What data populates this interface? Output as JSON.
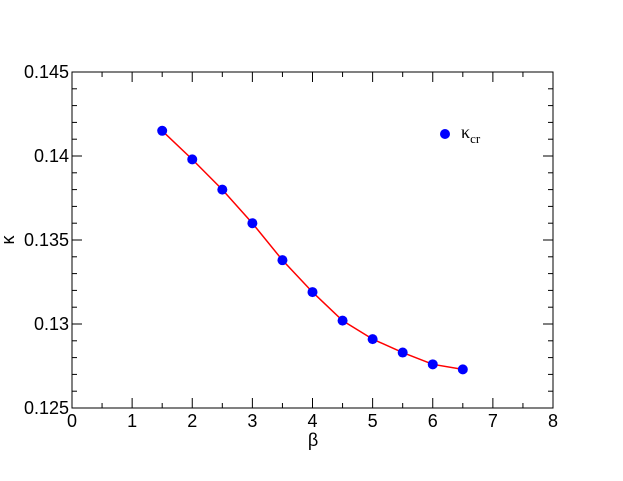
{
  "chart_data": {
    "type": "scatter",
    "x_label": "β",
    "y_label": "κ",
    "series": [
      {
        "name": "κ",
        "subscript": "cr",
        "color": "#0000ff",
        "line_color": "#ff0000",
        "x": [
          1.5,
          2,
          2.5,
          3,
          3.5,
          4,
          4.5,
          5,
          5.5,
          6,
          6.5
        ],
        "values": [
          0.1415,
          0.1398,
          0.138,
          0.136,
          0.1338,
          0.1319,
          0.1302,
          0.1291,
          0.1283,
          0.1276,
          0.1273
        ]
      }
    ],
    "xlim": [
      0,
      8
    ],
    "ylim": [
      0.125,
      0.145
    ],
    "xticks": [
      0,
      1,
      2,
      3,
      4,
      5,
      6,
      7,
      8
    ],
    "yticks": [
      0.125,
      0.13,
      0.135,
      0.14,
      0.145
    ],
    "xminor": [
      0.5,
      1.5,
      2.5,
      3.5,
      4.5,
      5.5,
      6.5,
      7.5
    ],
    "yminor": [
      0.126,
      0.127,
      0.128,
      0.129,
      0.131,
      0.132,
      0.133,
      0.134,
      0.136,
      0.137,
      0.138,
      0.139,
      0.141,
      0.142,
      0.143,
      0.144
    ],
    "legend": "upper right"
  }
}
